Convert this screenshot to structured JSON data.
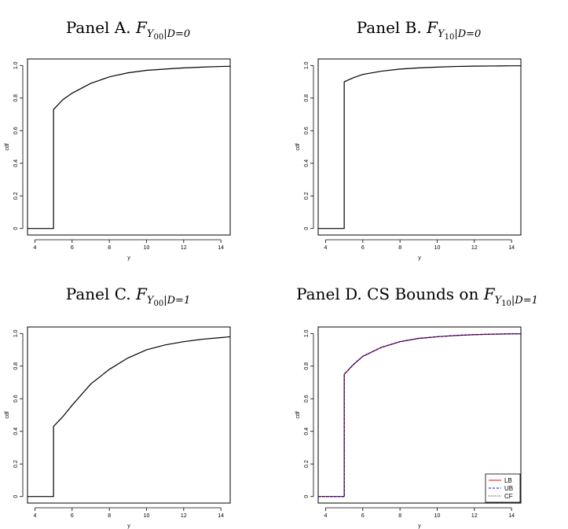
{
  "chart_data": [
    {
      "type": "line",
      "title": {
        "prefix": "Panel A. ",
        "math": "F",
        "sub": "Y",
        "subsub": "00",
        "cond": "|D=0"
      },
      "xlabel": "y",
      "ylabel": "cdf",
      "xlim": [
        3.6,
        14.5
      ],
      "ylim": [
        -0.04,
        1.04
      ],
      "xticks": [
        4,
        6,
        8,
        10,
        12,
        14
      ],
      "yticks": [
        0,
        0.2,
        0.4,
        0.6,
        0.8,
        1.0
      ],
      "ytick_labels": [
        "0",
        "0.2",
        "0.4",
        "0.6",
        "0.8",
        "1.0"
      ],
      "series": [
        {
          "color": "#000000",
          "dash": "solid",
          "x": [
            3.6,
            5,
            5,
            5.5,
            6,
            7,
            8,
            9,
            10,
            11,
            12,
            13,
            14,
            14.5
          ],
          "y": [
            0,
            0,
            0.73,
            0.79,
            0.83,
            0.89,
            0.93,
            0.955,
            0.97,
            0.978,
            0.985,
            0.99,
            0.994,
            0.995
          ]
        }
      ]
    },
    {
      "type": "line",
      "title": {
        "prefix": "Panel B. ",
        "math": "F",
        "sub": "Y",
        "subsub": "10",
        "cond": "|D=0"
      },
      "xlabel": "y",
      "ylabel": "cdf",
      "xlim": [
        3.6,
        14.5
      ],
      "ylim": [
        -0.04,
        1.04
      ],
      "xticks": [
        4,
        6,
        8,
        10,
        12,
        14
      ],
      "yticks": [
        0,
        0.2,
        0.4,
        0.6,
        0.8,
        1.0
      ],
      "ytick_labels": [
        "0",
        "0.2",
        "0.4",
        "0.6",
        "0.8",
        "1.0"
      ],
      "series": [
        {
          "color": "#000000",
          "dash": "solid",
          "x": [
            3.6,
            5,
            5,
            5.5,
            6,
            7,
            8,
            9,
            10,
            11,
            12,
            13,
            14,
            14.5
          ],
          "y": [
            0,
            0,
            0.9,
            0.925,
            0.945,
            0.965,
            0.978,
            0.985,
            0.99,
            0.994,
            0.996,
            0.997,
            0.998,
            0.998
          ]
        }
      ]
    },
    {
      "type": "line",
      "title": {
        "prefix": "Panel C. ",
        "math": "F",
        "sub": "Y",
        "subsub": "00",
        "cond": "|D=1"
      },
      "xlabel": "y",
      "ylabel": "cdf",
      "xlim": [
        3.6,
        14.5
      ],
      "ylim": [
        -0.04,
        1.04
      ],
      "xticks": [
        4,
        6,
        8,
        10,
        12,
        14
      ],
      "yticks": [
        0,
        0.2,
        0.4,
        0.6,
        0.8,
        1.0
      ],
      "ytick_labels": [
        "0",
        "0.2",
        "0.4",
        "0.6",
        "0.8",
        "1.0"
      ],
      "series": [
        {
          "color": "#000000",
          "dash": "solid",
          "x": [
            3.6,
            5,
            5,
            5.5,
            6,
            7,
            8,
            9,
            10,
            11,
            12,
            13,
            14,
            14.5
          ],
          "y": [
            0,
            0,
            0.43,
            0.49,
            0.56,
            0.69,
            0.78,
            0.85,
            0.9,
            0.93,
            0.95,
            0.965,
            0.975,
            0.98
          ]
        }
      ]
    },
    {
      "type": "line",
      "title": {
        "prefix": "Panel D. CS Bounds on ",
        "math": "F",
        "sub": "Y",
        "subsub": "10",
        "cond": "|D=1"
      },
      "xlabel": "y",
      "ylabel": "cdf",
      "xlim": [
        3.6,
        14.5
      ],
      "ylim": [
        -0.04,
        1.04
      ],
      "xticks": [
        4,
        6,
        8,
        10,
        12,
        14
      ],
      "yticks": [
        0,
        0.2,
        0.4,
        0.6,
        0.8,
        1.0
      ],
      "ytick_labels": [
        "0",
        "0.2",
        "0.4",
        "0.6",
        "0.8",
        "1.0"
      ],
      "legend": "bottom-right",
      "series": [
        {
          "name": "LB",
          "color": "#ff0000",
          "dash": "solid",
          "x": [
            3.6,
            5,
            5,
            5.5,
            6,
            7,
            8,
            9,
            10,
            11,
            12,
            13,
            14,
            14.5
          ],
          "y": [
            0,
            0,
            0.75,
            0.81,
            0.86,
            0.915,
            0.95,
            0.97,
            0.98,
            0.988,
            0.993,
            0.996,
            0.998,
            0.998
          ]
        },
        {
          "name": "UB",
          "color": "#0000ff",
          "dash": "dashed",
          "x": [
            3.6,
            5,
            5,
            5.5,
            6,
            7,
            8,
            9,
            10,
            11,
            12,
            13,
            14,
            14.5
          ],
          "y": [
            0,
            0,
            0.75,
            0.81,
            0.86,
            0.915,
            0.95,
            0.97,
            0.98,
            0.988,
            0.993,
            0.996,
            0.998,
            0.998
          ]
        },
        {
          "name": "CF",
          "color": "#000000",
          "dash": "dotted",
          "x": [
            3.6,
            5,
            5,
            5.5,
            6,
            7,
            8,
            9,
            10,
            11,
            12,
            13,
            14,
            14.5
          ],
          "y": [
            0,
            0,
            0.75,
            0.81,
            0.86,
            0.915,
            0.95,
            0.97,
            0.98,
            0.988,
            0.993,
            0.996,
            0.998,
            0.998
          ]
        }
      ]
    }
  ]
}
